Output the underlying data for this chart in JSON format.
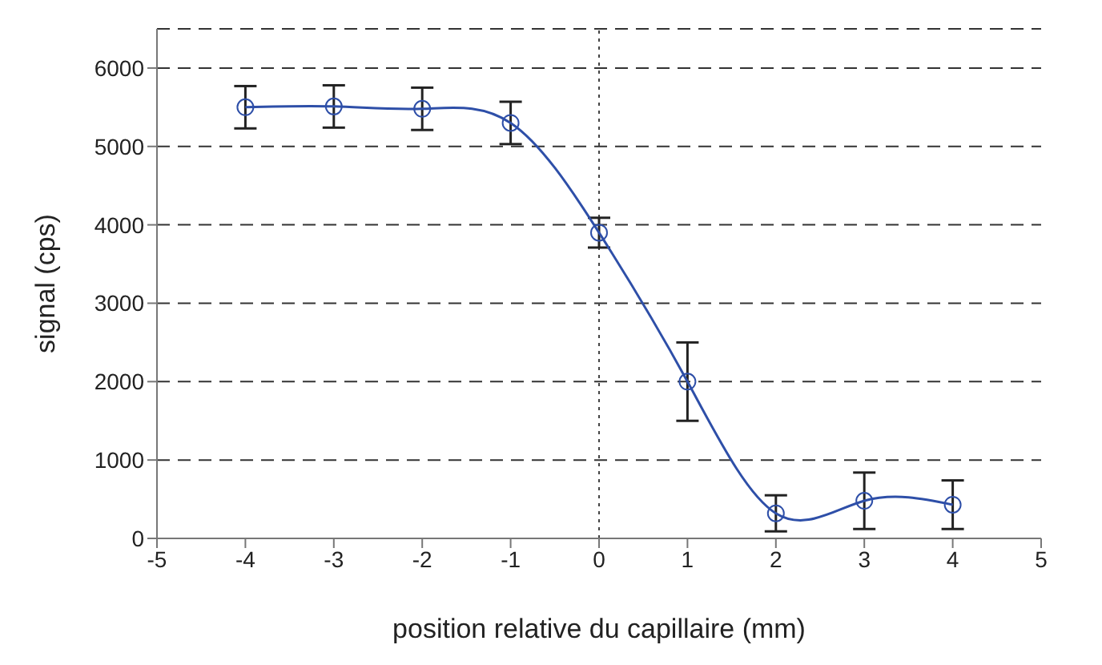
{
  "chart_data": {
    "type": "line",
    "xlabel": "position relative du capillaire (mm)",
    "ylabel": "signal (cps)",
    "x": [
      -4,
      -3,
      -2,
      -1,
      0,
      1,
      2,
      3,
      4
    ],
    "series": [
      {
        "color": "#2e4fa8",
        "values": [
          5500,
          5510,
          5480,
          5300,
          3900,
          2000,
          320,
          480,
          430
        ],
        "errors": [
          270,
          270,
          270,
          270,
          190,
          500,
          230,
          360,
          310
        ]
      }
    ],
    "xlim": [
      -5,
      5
    ],
    "xticks": [
      -5,
      -4,
      -3,
      -2,
      -1,
      0,
      1,
      2,
      3,
      4,
      5
    ],
    "ylim": [
      0,
      6500
    ],
    "yticks": [
      0,
      1000,
      2000,
      3000,
      4000,
      5000,
      6000
    ],
    "grid": "y",
    "marker": "circle",
    "line_style": "solid",
    "ref_lines": [
      {
        "axis": "x",
        "value": 0,
        "line_style": "dotted",
        "color": "#444444"
      }
    ]
  }
}
